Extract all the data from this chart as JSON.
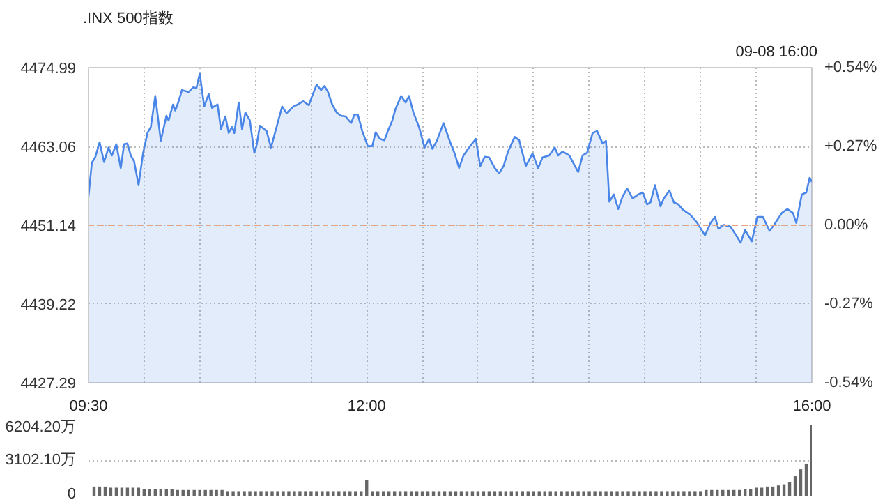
{
  "chart_data": [
    {
      "type": "area",
      "title": ".INX 500指数",
      "annotations": [
        "09-08 16:00"
      ],
      "x": [
        9.5,
        9.53,
        9.56,
        9.6,
        9.64,
        9.68,
        9.71,
        9.75,
        9.79,
        9.82,
        9.85,
        9.88,
        9.91,
        9.95,
        9.99,
        10.03,
        10.06,
        10.1,
        10.15,
        10.2,
        10.22,
        10.26,
        10.28,
        10.31,
        10.34,
        10.4,
        10.44,
        10.47,
        10.5,
        10.54,
        10.58,
        10.61,
        10.66,
        10.69,
        10.73,
        10.76,
        10.79,
        10.81,
        10.85,
        10.88,
        10.91,
        10.95,
        10.99,
        11.01,
        11.04,
        11.1,
        11.14,
        11.19,
        11.24,
        11.28,
        11.34,
        11.38,
        11.43,
        11.48,
        11.51,
        11.55,
        11.59,
        11.62,
        11.65,
        11.69,
        11.73,
        11.77,
        11.81,
        11.86,
        11.89,
        11.92,
        11.96,
        12.01,
        12.05,
        12.08,
        12.12,
        12.16,
        12.19,
        12.23,
        12.26,
        12.31,
        12.35,
        12.38,
        12.42,
        12.47,
        12.52,
        12.56,
        12.59,
        12.63,
        12.69,
        12.75,
        12.79,
        12.83,
        12.87,
        12.92,
        12.98,
        13.02,
        13.06,
        13.1,
        13.15,
        13.19,
        13.23,
        13.27,
        13.33,
        13.37,
        13.43,
        13.49,
        13.54,
        13.58,
        13.64,
        13.69,
        13.72,
        13.76,
        13.82,
        13.9,
        13.94,
        13.98,
        14.03,
        14.07,
        14.12,
        14.15,
        14.18,
        14.22,
        14.26,
        14.3,
        14.34,
        14.39,
        14.44,
        14.48,
        14.52,
        14.55,
        14.59,
        14.64,
        14.67,
        14.72,
        14.76,
        14.8,
        14.84,
        14.91,
        14.97,
        15.04,
        15.09,
        15.13,
        15.16,
        15.21,
        15.27,
        15.32,
        15.36,
        15.4,
        15.46,
        15.51,
        15.56,
        15.62,
        15.66,
        15.73,
        15.78,
        15.83,
        15.86,
        15.91,
        15.95,
        15.98,
        16.0
      ],
      "series": [
        {
          "color": "#4a86e8",
          "values": [
            4455.5,
            4460.6,
            4461.4,
            4463.7,
            4460.7,
            4462.9,
            4461.7,
            4463.4,
            4459.8,
            4463.4,
            4463.5,
            4461.7,
            4460.8,
            4457.2,
            4462.0,
            4465.1,
            4466.0,
            4470.7,
            4463.9,
            4467.7,
            4467.0,
            4469.4,
            4468.5,
            4469.9,
            4471.6,
            4471.3,
            4472.0,
            4471.9,
            4474.1,
            4469.1,
            4471.0,
            4468.9,
            4469.4,
            4465.7,
            4467.6,
            4465.1,
            4466.0,
            4465.1,
            4469.7,
            4465.7,
            4468.2,
            4467.0,
            4462.1,
            4463.2,
            4466.2,
            4465.4,
            4462.9,
            4466.0,
            4469.1,
            4468.1,
            4469.1,
            4469.4,
            4469.9,
            4469.3,
            4470.7,
            4472.4,
            4471.6,
            4472.2,
            4471.4,
            4469.4,
            4468.2,
            4467.7,
            4467.6,
            4466.6,
            4467.9,
            4467.9,
            4465.4,
            4463.1,
            4463.1,
            4465.2,
            4464.2,
            4464.0,
            4465.4,
            4467.0,
            4468.8,
            4470.7,
            4469.7,
            4470.7,
            4468.2,
            4466.0,
            4462.9,
            4464.2,
            4462.7,
            4463.9,
            4466.6,
            4463.7,
            4462.0,
            4459.8,
            4461.7,
            4462.9,
            4464.2,
            4460.1,
            4461.5,
            4461.4,
            4459.8,
            4459.0,
            4460.1,
            4462.3,
            4464.5,
            4464.0,
            4460.1,
            4462.0,
            4459.8,
            4461.4,
            4461.7,
            4462.9,
            4461.7,
            4462.3,
            4461.7,
            4459.2,
            4461.7,
            4462.1,
            4465.1,
            4465.4,
            4463.5,
            4463.9,
            4454.7,
            4455.8,
            4453.6,
            4455.5,
            4456.7,
            4455.2,
            4455.8,
            4456.1,
            4454.3,
            4454.6,
            4457.2,
            4454.0,
            4455.2,
            4456.4,
            4454.6,
            4454.3,
            4453.5,
            4452.7,
            4451.5,
            4449.6,
            4451.5,
            4452.4,
            4450.6,
            4451.2,
            4450.9,
            4449.6,
            4448.5,
            4450.4,
            4448.7,
            4452.4,
            4452.4,
            4450.3,
            4451.2,
            4453.0,
            4453.6,
            4453.0,
            4451.5,
            4455.8,
            4456.1,
            4458.3,
            4457.7
          ]
        }
      ],
      "xlim": [
        9.5,
        16
      ],
      "xticks": [
        {
          "value": 9.5,
          "label": "09:30"
        },
        {
          "value": 10,
          "label": null
        },
        {
          "value": 10.5,
          "label": null
        },
        {
          "value": 11,
          "label": null
        },
        {
          "value": 11.5,
          "label": null
        },
        {
          "value": 12,
          "label": "12:00"
        },
        {
          "value": 12.5,
          "label": null
        },
        {
          "value": 13,
          "label": null
        },
        {
          "value": 13.5,
          "label": null
        },
        {
          "value": 14,
          "label": null
        },
        {
          "value": 14.5,
          "label": null
        },
        {
          "value": 15,
          "label": null
        },
        {
          "value": 15.5,
          "label": null
        },
        {
          "value": 16,
          "label": "16:00"
        }
      ],
      "ylim": [
        4427.29,
        4474.99
      ],
      "yticks": [
        4427.29,
        4439.22,
        4451.14,
        4463.06,
        4474.99
      ],
      "y2lim": [
        -0.54,
        0.54
      ],
      "y2ticks": [
        {
          "value": -0.54,
          "label": "-0.54%"
        },
        {
          "value": -0.27,
          "label": "-0.27%"
        },
        {
          "value": 0,
          "label": "0.00%"
        },
        {
          "value": 0.27,
          "label": "+0.27%"
        },
        {
          "value": 0.54,
          "label": "+0.54%"
        }
      ],
      "ref_lines": [
        {
          "axis": "y",
          "value": 4451.14,
          "color": "#e8a27c",
          "line_style": "dashed"
        }
      ],
      "grid": true
    },
    {
      "type": "bar",
      "color": "#666666",
      "x": [
        9.55,
        9.6,
        9.65,
        9.7,
        9.75,
        9.8,
        9.85,
        9.9,
        9.95,
        10.0,
        10.05,
        10.1,
        10.15,
        10.2,
        10.25,
        10.3,
        10.35,
        10.4,
        10.45,
        10.5,
        10.55,
        10.6,
        10.65,
        10.7,
        10.75,
        10.8,
        10.85,
        10.9,
        10.95,
        11.0,
        11.05,
        11.1,
        11.15,
        11.2,
        11.25,
        11.3,
        11.35,
        11.4,
        11.45,
        11.5,
        11.55,
        11.6,
        11.65,
        11.7,
        11.75,
        11.8,
        11.85,
        11.9,
        11.95,
        12.0,
        12.05,
        12.1,
        12.15,
        12.2,
        12.25,
        12.3,
        12.35,
        12.4,
        12.45,
        12.5,
        12.55,
        12.6,
        12.65,
        12.7,
        12.75,
        12.8,
        12.85,
        12.9,
        12.95,
        13.0,
        13.05,
        13.1,
        13.15,
        13.2,
        13.25,
        13.3,
        13.35,
        13.4,
        13.45,
        13.5,
        13.55,
        13.6,
        13.65,
        13.7,
        13.75,
        13.8,
        13.85,
        13.9,
        13.95,
        14.0,
        14.05,
        14.1,
        14.15,
        14.2,
        14.25,
        14.3,
        14.35,
        14.4,
        14.45,
        14.5,
        14.55,
        14.6,
        14.65,
        14.7,
        14.75,
        14.8,
        14.85,
        14.9,
        14.95,
        15.0,
        15.05,
        15.1,
        15.15,
        15.2,
        15.25,
        15.3,
        15.35,
        15.4,
        15.45,
        15.5,
        15.55,
        15.6,
        15.65,
        15.7,
        15.75,
        15.8,
        15.85,
        15.9,
        15.95,
        16.0
      ],
      "values": [
        800,
        800,
        800,
        700,
        700,
        700,
        700,
        700,
        700,
        600,
        600,
        600,
        600,
        600,
        600,
        500,
        500,
        500,
        500,
        500,
        500,
        500,
        500,
        500,
        400,
        400,
        400,
        400,
        400,
        400,
        400,
        400,
        400,
        400,
        400,
        400,
        400,
        400,
        400,
        400,
        400,
        400,
        400,
        400,
        400,
        400,
        400,
        400,
        400,
        1400,
        400,
        400,
        400,
        400,
        400,
        400,
        400,
        400,
        400,
        400,
        400,
        400,
        400,
        400,
        400,
        400,
        400,
        400,
        400,
        400,
        400,
        400,
        400,
        400,
        400,
        400,
        400,
        400,
        400,
        400,
        400,
        400,
        400,
        400,
        400,
        400,
        400,
        400,
        400,
        400,
        400,
        400,
        400,
        400,
        400,
        400,
        400,
        400,
        400,
        400,
        400,
        400,
        400,
        400,
        400,
        400,
        400,
        400,
        400,
        400,
        500,
        500,
        500,
        500,
        500,
        500,
        500,
        600,
        600,
        700,
        700,
        800,
        800,
        900,
        1000,
        1200,
        1700,
        2300,
        2800,
        6204.2
      ],
      "xlim": [
        9.5,
        16
      ],
      "ylim": [
        0,
        6204.2
      ],
      "yticks": [
        0,
        {
          "value": 3102.1,
          "label": "3102.10万"
        },
        {
          "value": 6204.2,
          "label": "6204.20万"
        }
      ],
      "grid": "y",
      "tick_labels": "y"
    }
  ]
}
